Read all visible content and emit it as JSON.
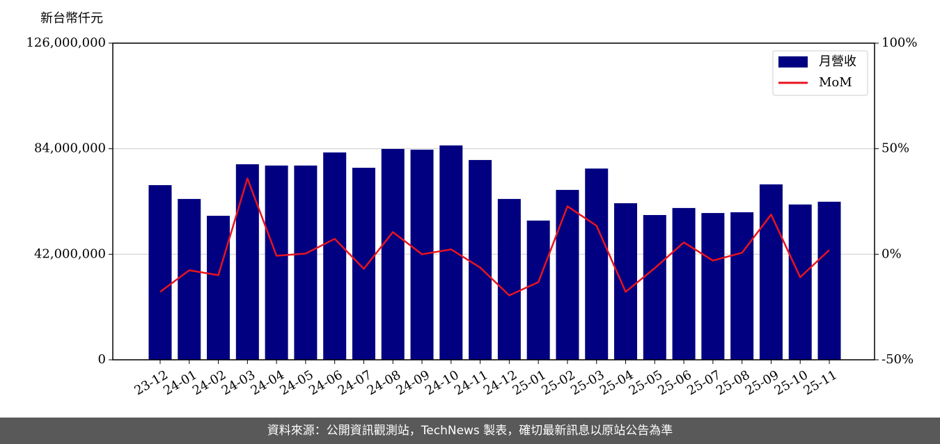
{
  "chart_data": {
    "type": "bar_line",
    "y_label": "新台幣仟元",
    "categories": [
      "23-12",
      "24-01",
      "24-02",
      "24-03",
      "24-04",
      "24-05",
      "24-06",
      "24-07",
      "24-08",
      "24-09",
      "24-10",
      "24-11",
      "24-12",
      "25-01",
      "25-02",
      "25-03",
      "25-04",
      "25-05",
      "25-06",
      "25-07",
      "25-08",
      "25-09",
      "25-10",
      "25-11"
    ],
    "series": [
      {
        "name": "月營收",
        "color": "#000080",
        "type": "bar",
        "values": [
          69500000,
          64000000,
          57300000,
          77800000,
          77300000,
          77300000,
          82500000,
          76400000,
          83900000,
          83600000,
          85300000,
          79500000,
          64000000,
          55400000,
          67600000,
          76100000,
          62300000,
          57600000,
          60400000,
          58400000,
          58700000,
          69800000,
          61800000,
          62900000
        ]
      },
      {
        "name": "MoM",
        "color": "#e8141e",
        "type": "line",
        "axis": "y2",
        "values": [
          -17.8,
          -7.6,
          -9.9,
          35.9,
          -0.7,
          0.3,
          7.3,
          -6.9,
          10.5,
          0,
          2.3,
          -6.3,
          -19.5,
          -13.2,
          22.7,
          13.5,
          -17.8,
          -6.6,
          5.6,
          -3.0,
          0.7,
          18.8,
          -10.9,
          2.0
        ]
      }
    ],
    "ylim": [
      0,
      126000000
    ],
    "yticks": [
      0,
      {
        "value": 42000000,
        "label": "42,000,000"
      },
      {
        "value": 84000000,
        "label": "84,000,000"
      },
      {
        "value": 126000000,
        "label": "126,000,000"
      }
    ],
    "y2lim": [
      -50,
      100
    ],
    "y2ticks": [
      {
        "value": -50,
        "label": "-50%"
      },
      {
        "value": 0,
        "label": "0%"
      },
      {
        "value": 50,
        "label": "50%"
      },
      {
        "value": 100,
        "label": "100%"
      }
    ],
    "grid": true,
    "legend": "upper right"
  },
  "footer": "資料來源：公開資訊觀測站，TechNews 製表，確切最新訊息以原站公告為準"
}
